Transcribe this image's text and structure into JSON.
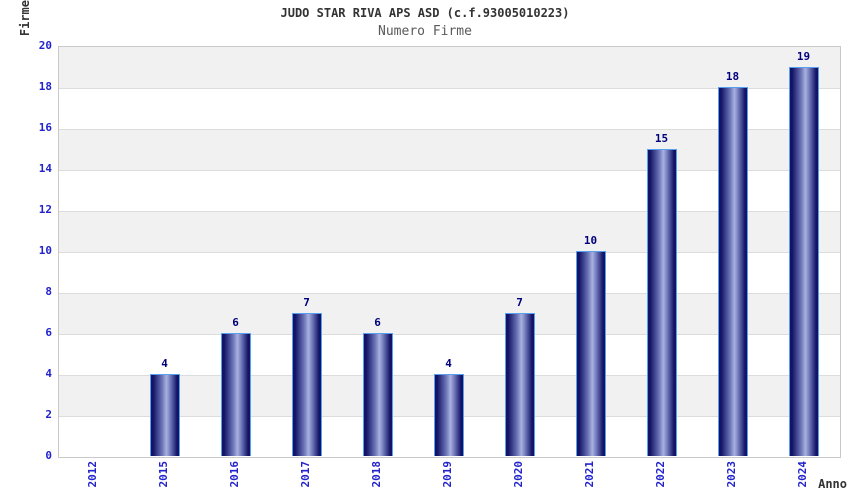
{
  "chart_data": {
    "type": "bar",
    "title": "JUDO STAR RIVA APS ASD (c.f.93005010223)",
    "subtitle": "Numero Firme",
    "xlabel": "Anno",
    "ylabel": "Firme",
    "categories": [
      "2012",
      "2015",
      "2016",
      "2017",
      "2018",
      "2019",
      "2020",
      "2021",
      "2022",
      "2023",
      "2024"
    ],
    "values": [
      0,
      4,
      6,
      7,
      6,
      4,
      7,
      10,
      15,
      18,
      19
    ],
    "ylim": [
      0,
      20
    ],
    "ytick_step": 2,
    "legend": "none",
    "grid": "horizontal-bands-alternating",
    "value_labels_shown": true,
    "colors": {
      "bar_dark": "#141467",
      "bar_mid": "#6d76b8",
      "bar_light": "#aab1e0",
      "bar_border": "#58a0ee",
      "tick_label": "#2323cd",
      "value_label": "#00007d",
      "band_gray": "#f1f1f1",
      "band_white": "#ffffff",
      "gridline": "#dcdcdc",
      "plot_border": "#c9c9c9",
      "title_color": "#333333",
      "subtitle_color": "#5a5a5a"
    }
  }
}
